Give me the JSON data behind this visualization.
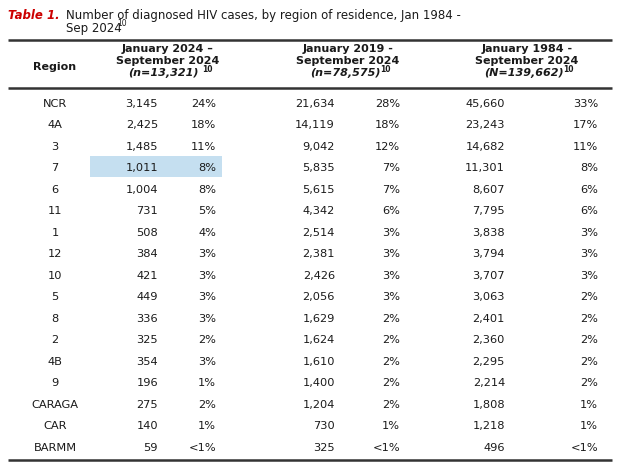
{
  "title_prefix": "Table 1.",
  "title_text": "Number of diagnosed HIV cases, by region of residence, Jan 1984 -",
  "title_line2": "Sep 2024",
  "title_superscript": "10",
  "regions": [
    "NCR",
    "4A",
    "3",
    "7",
    "6",
    "11",
    "1",
    "12",
    "10",
    "5",
    "8",
    "2",
    "4B",
    "9",
    "CARAGA",
    "CAR",
    "BARMM"
  ],
  "col1_vals": [
    "3,145",
    "2,425",
    "1,485",
    "1,011",
    "1,004",
    "731",
    "508",
    "384",
    "421",
    "449",
    "336",
    "325",
    "354",
    "196",
    "275",
    "140",
    "59"
  ],
  "col1_pcts": [
    "24%",
    "18%",
    "11%",
    "8%",
    "8%",
    "5%",
    "4%",
    "3%",
    "3%",
    "3%",
    "3%",
    "2%",
    "3%",
    "1%",
    "2%",
    "1%",
    "<1%"
  ],
  "col2_vals": [
    "21,634",
    "14,119",
    "9,042",
    "5,835",
    "5,615",
    "4,342",
    "2,514",
    "2,381",
    "2,426",
    "2,056",
    "1,629",
    "1,624",
    "1,610",
    "1,400",
    "1,204",
    "730",
    "325"
  ],
  "col2_pcts": [
    "28%",
    "18%",
    "12%",
    "7%",
    "7%",
    "6%",
    "3%",
    "3%",
    "3%",
    "3%",
    "2%",
    "2%",
    "2%",
    "2%",
    "2%",
    "1%",
    "<1%"
  ],
  "col3_vals": [
    "45,660",
    "23,243",
    "14,682",
    "11,301",
    "8,607",
    "7,795",
    "3,838",
    "3,794",
    "3,707",
    "3,063",
    "2,401",
    "2,360",
    "2,295",
    "2,214",
    "1,808",
    "1,218",
    "496"
  ],
  "col3_pcts": [
    "33%",
    "17%",
    "11%",
    "8%",
    "6%",
    "6%",
    "3%",
    "3%",
    "3%",
    "2%",
    "2%",
    "2%",
    "2%",
    "2%",
    "1%",
    "1%",
    "<1%"
  ],
  "highlight_row": 3,
  "highlight_color": "#c5dff0",
  "title_color": "#cc0000",
  "background_color": "#ffffff",
  "text_color": "#1a1a1a",
  "line_color": "#333333",
  "figw": 6.2,
  "figh": 4.75,
  "dpi": 100
}
